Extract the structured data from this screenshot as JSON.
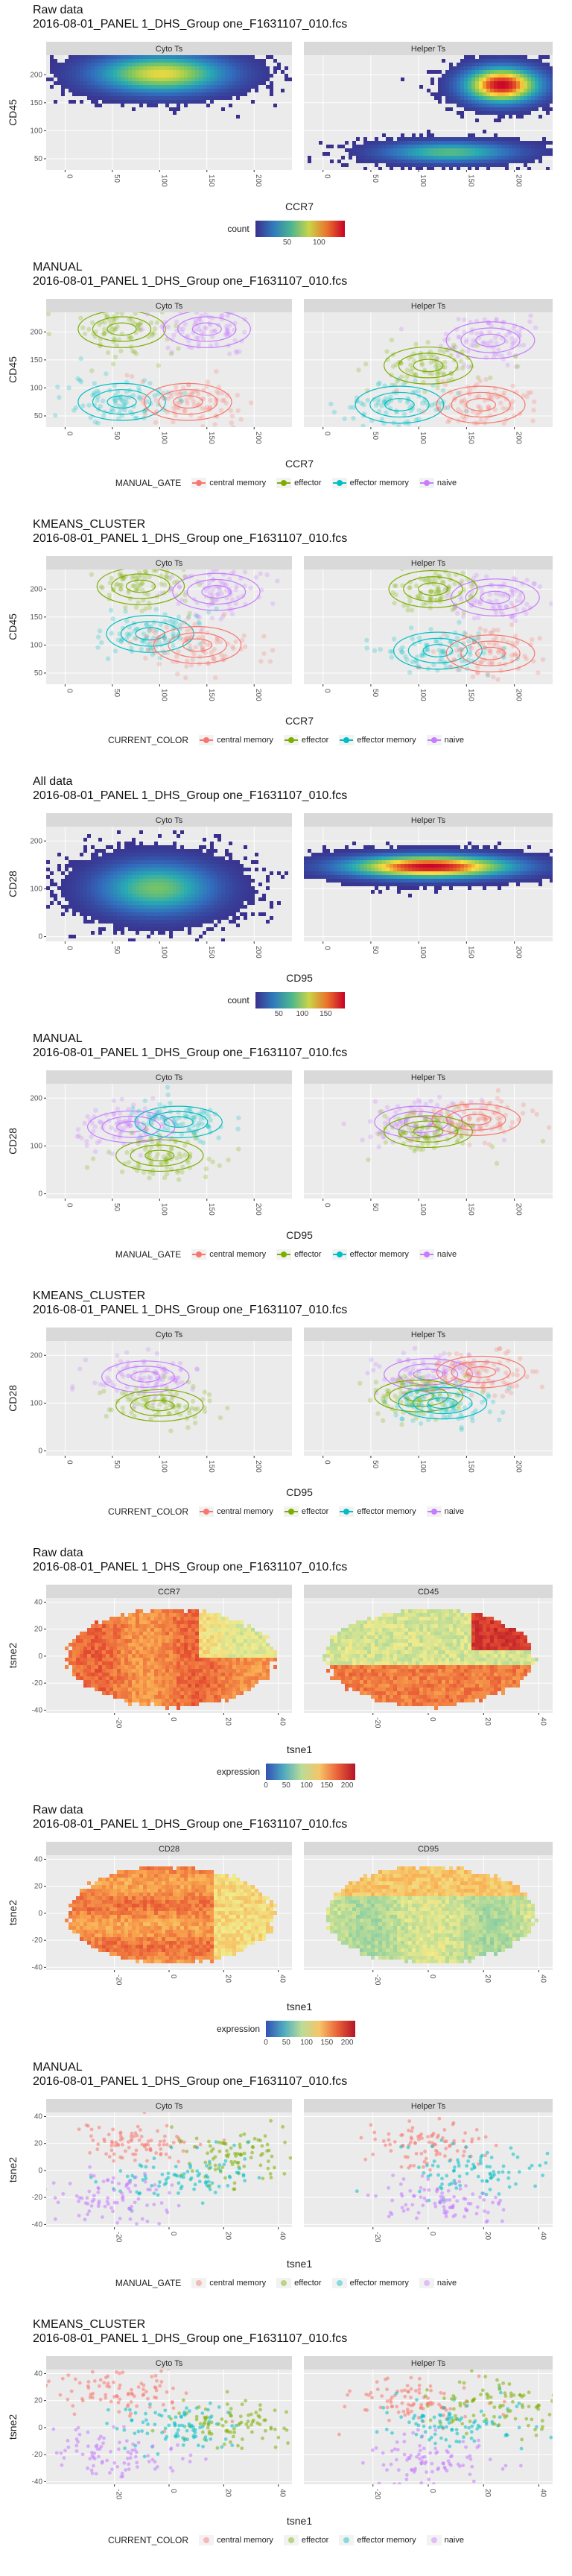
{
  "figures": [
    {
      "id": "f1",
      "title1": "Raw data",
      "title2": "2016-08-01_PANEL 1_DHS_Group one_F1631107_010.fcs",
      "kind": "hex",
      "xlabel": "CCR7",
      "ylabel": "CD45",
      "panels": [
        "Cyto Ts",
        "Helper Ts"
      ],
      "xticks": [
        0,
        50,
        100,
        150,
        200
      ],
      "yticks": [
        50,
        100,
        150,
        200
      ],
      "xlim": [
        -20,
        240
      ],
      "ylim": [
        30,
        235
      ],
      "legend": {
        "type": "continuous",
        "title": "count",
        "labels": [
          "50",
          "100"
        ],
        "range": [
          0,
          140
        ]
      }
    },
    {
      "id": "f2",
      "title1": "MANUAL",
      "title2": "2016-08-01_PANEL 1_DHS_Group one_F1631107_010.fcs",
      "kind": "gate",
      "xlabel": "CCR7",
      "ylabel": "CD45",
      "panels": [
        "Cyto Ts",
        "Helper Ts"
      ],
      "xticks": [
        0,
        50,
        100,
        150,
        200
      ],
      "yticks": [
        50,
        100,
        150,
        200
      ],
      "xlim": [
        -20,
        240
      ],
      "ylim": [
        30,
        235
      ],
      "legend": {
        "type": "discrete",
        "title": "MANUAL_GATE",
        "items": [
          "central memory",
          "effector",
          "effector memory",
          "naive"
        ]
      }
    },
    {
      "id": "f3",
      "title1": "KMEANS_CLUSTER",
      "title2": "2016-08-01_PANEL 1_DHS_Group one_F1631107_010.fcs",
      "kind": "gate",
      "xlabel": "CCR7",
      "ylabel": "CD45",
      "panels": [
        "Cyto Ts",
        "Helper Ts"
      ],
      "xticks": [
        0,
        50,
        100,
        150,
        200
      ],
      "yticks": [
        50,
        100,
        150,
        200
      ],
      "xlim": [
        -20,
        240
      ],
      "ylim": [
        30,
        235
      ],
      "legend": {
        "type": "discrete",
        "title": "CURRENT_COLOR",
        "items": [
          "central memory",
          "effector",
          "effector memory",
          "naive"
        ]
      }
    },
    {
      "id": "f4",
      "title1": "All data",
      "title2": "2016-08-01_PANEL 1_DHS_Group one_F1631107_010.fcs",
      "kind": "hex",
      "xlabel": "CD95",
      "ylabel": "CD28",
      "panels": [
        "Cyto Ts",
        "Helper Ts"
      ],
      "xticks": [
        0,
        50,
        100,
        150,
        200
      ],
      "yticks": [
        0,
        100,
        200
      ],
      "xlim": [
        -20,
        240
      ],
      "ylim": [
        -10,
        230
      ],
      "legend": {
        "type": "continuous",
        "title": "count",
        "labels": [
          "50",
          "100",
          "150"
        ],
        "range": [
          0,
          190
        ]
      }
    },
    {
      "id": "f5",
      "title1": "MANUAL",
      "title2": "2016-08-01_PANEL 1_DHS_Group one_F1631107_010.fcs",
      "kind": "gate",
      "xlabel": "CD95",
      "ylabel": "CD28",
      "panels": [
        "Cyto Ts",
        "Helper Ts"
      ],
      "xticks": [
        0,
        50,
        100,
        150,
        200
      ],
      "yticks": [
        0,
        100,
        200
      ],
      "xlim": [
        -20,
        240
      ],
      "ylim": [
        -10,
        230
      ],
      "legend": {
        "type": "discrete",
        "title": "MANUAL_GATE",
        "items": [
          "central memory",
          "effector",
          "effector memory",
          "naive"
        ]
      }
    },
    {
      "id": "f6",
      "title1": "KMEANS_CLUSTER",
      "title2": "2016-08-01_PANEL 1_DHS_Group one_F1631107_010.fcs",
      "kind": "gate",
      "xlabel": "CD95",
      "ylabel": "CD28",
      "panels": [
        "Cyto Ts",
        "Helper Ts"
      ],
      "xticks": [
        0,
        50,
        100,
        150,
        200
      ],
      "yticks": [
        0,
        100,
        200
      ],
      "xlim": [
        -20,
        240
      ],
      "ylim": [
        -10,
        230
      ],
      "legend": {
        "type": "discrete",
        "title": "CURRENT_COLOR",
        "items": [
          "central memory",
          "effector",
          "effector memory",
          "naive"
        ]
      }
    },
    {
      "id": "f7",
      "title1": "Raw data",
      "title2": "2016-08-01_PANEL 1_DHS_Group one_F1631107_010.fcs",
      "kind": "tsne",
      "xlabel": "tsne1",
      "ylabel": "tsne2",
      "panels": [
        "CCR7",
        "CD45"
      ],
      "xticks": [
        -20,
        0,
        20,
        40
      ],
      "yticks": [
        -40,
        -20,
        0,
        20,
        40
      ],
      "xlim": [
        -45,
        45
      ],
      "ylim": [
        -42,
        43
      ],
      "legend": {
        "type": "continuous",
        "title": "expression",
        "labels": [
          "0",
          "50",
          "100",
          "150",
          "200"
        ],
        "range": [
          0,
          220
        ]
      }
    },
    {
      "id": "f8",
      "title1": "Raw data",
      "title2": "2016-08-01_PANEL 1_DHS_Group one_F1631107_010.fcs",
      "kind": "tsne",
      "xlabel": "tsne1",
      "ylabel": "tsne2",
      "panels": [
        "CD28",
        "CD95"
      ],
      "xticks": [
        -20,
        0,
        20,
        40
      ],
      "yticks": [
        -40,
        -20,
        0,
        20,
        40
      ],
      "xlim": [
        -45,
        45
      ],
      "ylim": [
        -42,
        43
      ],
      "legend": {
        "type": "continuous",
        "title": "expression",
        "labels": [
          "0",
          "50",
          "100",
          "150",
          "200"
        ],
        "range": [
          0,
          220
        ]
      }
    },
    {
      "id": "f9",
      "title1": "MANUAL",
      "title2": "2016-08-01_PANEL 1_DHS_Group one_F1631107_010.fcs",
      "kind": "tsnegate",
      "xlabel": "tsne1",
      "ylabel": "tsne2",
      "panels": [
        "Cyto Ts",
        "Helper Ts"
      ],
      "xticks": [
        -20,
        0,
        20,
        40
      ],
      "yticks": [
        -40,
        -20,
        0,
        20,
        40
      ],
      "xlim": [
        -45,
        45
      ],
      "ylim": [
        -42,
        43
      ],
      "legend": {
        "type": "discrete",
        "title": "MANUAL_GATE",
        "items": [
          "central memory",
          "effector",
          "effector memory",
          "naive"
        ]
      }
    },
    {
      "id": "f10",
      "title1": "KMEANS_CLUSTER",
      "title2": "2016-08-01_PANEL 1_DHS_Group one_F1631107_010.fcs",
      "kind": "tsnegate",
      "xlabel": "tsne1",
      "ylabel": "tsne2",
      "panels": [
        "Cyto Ts",
        "Helper Ts"
      ],
      "xticks": [
        -20,
        0,
        20,
        40
      ],
      "yticks": [
        -40,
        -20,
        0,
        20,
        40
      ],
      "xlim": [
        -45,
        45
      ],
      "ylim": [
        -42,
        43
      ],
      "legend": {
        "type": "discrete",
        "title": "CURRENT_COLOR",
        "items": [
          "central memory",
          "effector",
          "effector memory",
          "naive"
        ]
      }
    }
  ],
  "colors": {
    "central memory": "#F8766D",
    "effector": "#7CAE00",
    "effector memory": "#00BFC4",
    "naive": "#C77CFF",
    "panel_bg": "#EBEBEB",
    "strip_bg": "#D9D9D9",
    "grid": "#FFFFFF"
  },
  "chart_data": [
    {
      "type": "heatmap",
      "title": "Raw data",
      "subtitle": "2016-08-01_PANEL 1_DHS_Group one_F1631107_010.fcs",
      "xlabel": "CCR7",
      "ylabel": "CD45",
      "facets": [
        "Cyto Ts",
        "Helper Ts"
      ],
      "fill": "count",
      "xlim": [
        -20,
        240
      ],
      "ylim": [
        30,
        235
      ],
      "clusters": [
        {
          "facet": "Cyto Ts",
          "x": 100,
          "y": 205,
          "sx": 45,
          "sy": 22,
          "peak": 90
        },
        {
          "facet": "Helper Ts",
          "x": 185,
          "y": 185,
          "sx": 25,
          "sy": 20,
          "peak": 140
        },
        {
          "facet": "Helper Ts",
          "x": 130,
          "y": 65,
          "sx": 45,
          "sy": 12,
          "peak": 60
        }
      ]
    },
    {
      "type": "scatter",
      "title": "MANUAL",
      "subtitle": "2016-08-01_PANEL 1_DHS_Group one_F1631107_010.fcs",
      "xlabel": "CCR7",
      "ylabel": "CD45",
      "facets": [
        "Cyto Ts",
        "Helper Ts"
      ],
      "legend_title": "MANUAL_GATE",
      "series": [
        {
          "name": "effector",
          "facet": "Cyto Ts",
          "x": 60,
          "y": 205
        },
        {
          "name": "naive",
          "facet": "Cyto Ts",
          "x": 150,
          "y": 205
        },
        {
          "name": "effector memory",
          "facet": "Cyto Ts",
          "x": 60,
          "y": 75
        },
        {
          "name": "central memory",
          "facet": "Cyto Ts",
          "x": 130,
          "y": 75
        },
        {
          "name": "naive",
          "facet": "Helper Ts",
          "x": 175,
          "y": 185
        },
        {
          "name": "effector",
          "facet": "Helper Ts",
          "x": 110,
          "y": 140
        },
        {
          "name": "effector memory",
          "facet": "Helper Ts",
          "x": 80,
          "y": 70
        },
        {
          "name": "central memory",
          "facet": "Helper Ts",
          "x": 165,
          "y": 70
        }
      ]
    },
    {
      "type": "scatter",
      "title": "KMEANS_CLUSTER",
      "subtitle": "2016-08-01_PANEL 1_DHS_Group one_F1631107_010.fcs",
      "xlabel": "CCR7",
      "ylabel": "CD45",
      "facets": [
        "Cyto Ts",
        "Helper Ts"
      ],
      "legend_title": "CURRENT_COLOR",
      "series": [
        {
          "name": "effector",
          "facet": "Cyto Ts",
          "x": 80,
          "y": 205
        },
        {
          "name": "naive",
          "facet": "Cyto Ts",
          "x": 160,
          "y": 195
        },
        {
          "name": "effector memory",
          "facet": "Cyto Ts",
          "x": 90,
          "y": 120
        },
        {
          "name": "central memory",
          "facet": "Cyto Ts",
          "x": 140,
          "y": 100
        },
        {
          "name": "naive",
          "facet": "Helper Ts",
          "x": 180,
          "y": 185
        },
        {
          "name": "effector",
          "facet": "Helper Ts",
          "x": 115,
          "y": 200
        },
        {
          "name": "effector memory",
          "facet": "Helper Ts",
          "x": 120,
          "y": 90
        },
        {
          "name": "central memory",
          "facet": "Helper Ts",
          "x": 175,
          "y": 85
        }
      ]
    },
    {
      "type": "heatmap",
      "title": "All data",
      "subtitle": "2016-08-01_PANEL 1_DHS_Group one_F1631107_010.fcs",
      "xlabel": "CD95",
      "ylabel": "CD28",
      "facets": [
        "Cyto Ts",
        "Helper Ts"
      ],
      "fill": "count",
      "xlim": [
        -20,
        240
      ],
      "ylim": [
        -10,
        230
      ],
      "clusters": [
        {
          "facet": "Cyto Ts",
          "x": 95,
          "y": 105,
          "sx": 40,
          "sy": 35,
          "peak": 90
        },
        {
          "facet": "Helper Ts",
          "x": 110,
          "y": 150,
          "sx": 55,
          "sy": 15,
          "peak": 190
        }
      ]
    },
    {
      "type": "scatter",
      "title": "MANUAL",
      "subtitle": "2016-08-01_PANEL 1_DHS_Group one_F1631107_010.fcs",
      "xlabel": "CD95",
      "ylabel": "CD28",
      "facets": [
        "Cyto Ts",
        "Helper Ts"
      ],
      "legend_title": "MANUAL_GATE",
      "series": [
        {
          "name": "naive",
          "facet": "Cyto Ts",
          "x": 70,
          "y": 140
        },
        {
          "name": "effector memory",
          "facet": "Cyto Ts",
          "x": 120,
          "y": 150
        },
        {
          "name": "effector",
          "facet": "Cyto Ts",
          "x": 100,
          "y": 80
        },
        {
          "name": "naive",
          "facet": "Helper Ts",
          "x": 100,
          "y": 150
        },
        {
          "name": "central memory",
          "facet": "Helper Ts",
          "x": 160,
          "y": 155
        },
        {
          "name": "effector",
          "facet": "Helper Ts",
          "x": 110,
          "y": 130
        }
      ]
    },
    {
      "type": "scatter",
      "title": "KMEANS_CLUSTER",
      "subtitle": "2016-08-01_PANEL 1_DHS_Group one_F1631107_010.fcs",
      "xlabel": "CD95",
      "ylabel": "CD28",
      "facets": [
        "Cyto Ts",
        "Helper Ts"
      ],
      "legend_title": "CURRENT_COLOR",
      "series": [
        {
          "name": "naive",
          "facet": "Cyto Ts",
          "x": 85,
          "y": 155
        },
        {
          "name": "effector",
          "facet": "Cyto Ts",
          "x": 100,
          "y": 95
        },
        {
          "name": "naive",
          "facet": "Helper Ts",
          "x": 110,
          "y": 160
        },
        {
          "name": "central memory",
          "facet": "Helper Ts",
          "x": 165,
          "y": 165
        },
        {
          "name": "effector",
          "facet": "Helper Ts",
          "x": 100,
          "y": 115
        },
        {
          "name": "effector memory",
          "facet": "Helper Ts",
          "x": 125,
          "y": 100
        }
      ]
    },
    {
      "type": "scatter",
      "title": "Raw data",
      "subtitle": "2016-08-01_PANEL 1_DHS_Group one_F1631107_010.fcs",
      "xlabel": "tsne1",
      "ylabel": "tsne2",
      "facets": [
        "CCR7",
        "CD45"
      ],
      "fill": "expression",
      "xlim": [
        -45,
        45
      ],
      "ylim": [
        -42,
        43
      ]
    },
    {
      "type": "scatter",
      "title": "Raw data",
      "subtitle": "2016-08-01_PANEL 1_DHS_Group one_F1631107_010.fcs",
      "xlabel": "tsne1",
      "ylabel": "tsne2",
      "facets": [
        "CD28",
        "CD95"
      ],
      "fill": "expression",
      "xlim": [
        -45,
        45
      ],
      "ylim": [
        -42,
        43
      ]
    },
    {
      "type": "scatter",
      "title": "MANUAL",
      "subtitle": "2016-08-01_PANEL 1_DHS_Group one_F1631107_010.fcs",
      "xlabel": "tsne1",
      "ylabel": "tsne2",
      "facets": [
        "Cyto Ts",
        "Helper Ts"
      ],
      "legend_title": "MANUAL_GATE",
      "series": [
        {
          "name": "central memory",
          "facet": "Cyto Ts",
          "x": -10,
          "y": 20
        },
        {
          "name": "effector",
          "facet": "Cyto Ts",
          "x": 25,
          "y": 10
        },
        {
          "name": "effector memory",
          "facet": "Cyto Ts",
          "x": 5,
          "y": -5
        },
        {
          "name": "naive",
          "facet": "Cyto Ts",
          "x": -20,
          "y": -20
        },
        {
          "name": "central memory",
          "facet": "Helper Ts",
          "x": 0,
          "y": 20
        },
        {
          "name": "effector memory",
          "facet": "Helper Ts",
          "x": 15,
          "y": 0
        },
        {
          "name": "naive",
          "facet": "Helper Ts",
          "x": 5,
          "y": -25
        }
      ]
    },
    {
      "type": "scatter",
      "title": "KMEANS_CLUSTER",
      "subtitle": "2016-08-01_PANEL 1_DHS_Group one_F1631107_010.fcs",
      "xlabel": "tsne1",
      "ylabel": "tsne2",
      "facets": [
        "Cyto Ts",
        "Helper Ts"
      ],
      "legend_title": "CURRENT_COLOR",
      "series": [
        {
          "name": "central memory",
          "facet": "Cyto Ts",
          "x": -15,
          "y": 25
        },
        {
          "name": "effector",
          "facet": "Cyto Ts",
          "x": 25,
          "y": 5
        },
        {
          "name": "effector memory",
          "facet": "Cyto Ts",
          "x": 5,
          "y": 0
        },
        {
          "name": "naive",
          "facet": "Cyto Ts",
          "x": -20,
          "y": -20
        },
        {
          "name": "central memory",
          "facet": "Helper Ts",
          "x": -5,
          "y": 20
        },
        {
          "name": "effector memory",
          "facet": "Helper Ts",
          "x": 10,
          "y": 5
        },
        {
          "name": "effector",
          "facet": "Helper Ts",
          "x": 25,
          "y": 15
        },
        {
          "name": "naive",
          "facet": "Helper Ts",
          "x": 0,
          "y": -25
        }
      ]
    }
  ]
}
